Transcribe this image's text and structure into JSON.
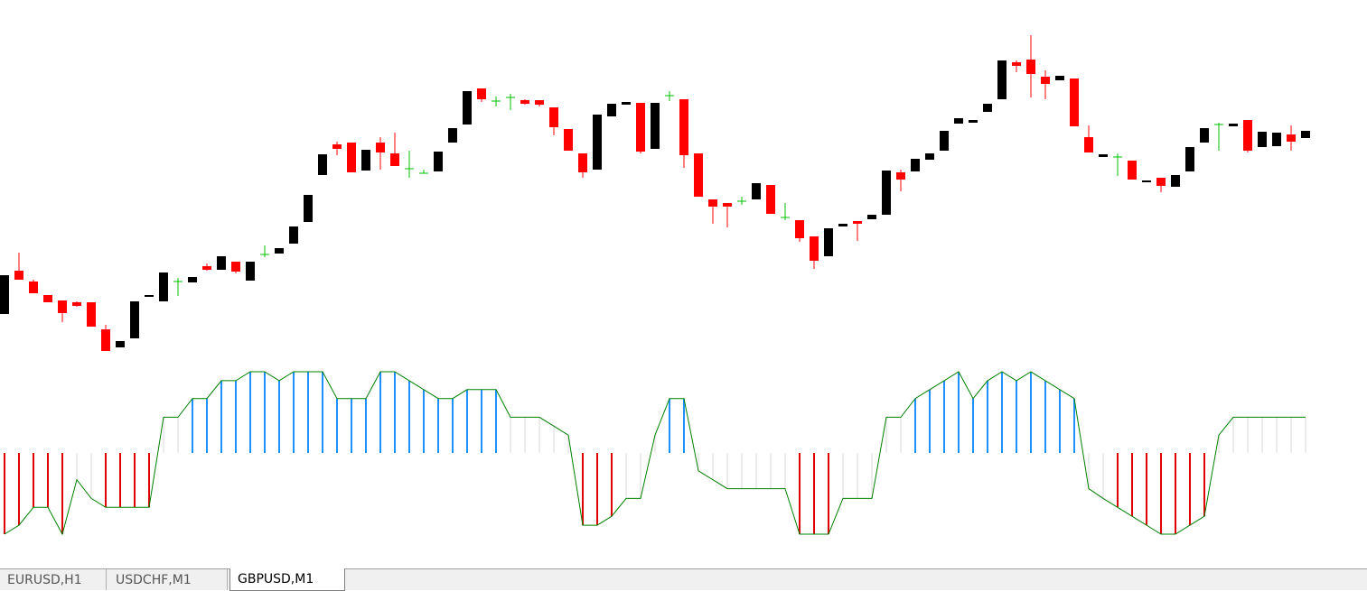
{
  "chart_data": [
    {
      "type": "candlestick",
      "ylim": [
        0,
        400
      ],
      "up_color": "#000000",
      "down_color": "#ff0000",
      "doji_color": "#00c000",
      "open": [
        52,
        100,
        88,
        73,
        67,
        65,
        65,
        35,
        15,
        25,
        71,
        66,
        88,
        87,
        105,
        101,
        110,
        89,
        118,
        119,
        130,
        154,
        206,
        240,
        242,
        211,
        242,
        230,
        213,
        208,
        210,
        242,
        262,
        302,
        288,
        292,
        289,
        289,
        281,
        257,
        230,
        212,
        271,
        284,
        286,
        235,
        294,
        290,
        230,
        179,
        175,
        177,
        179,
        195,
        159,
        156,
        138,
        116,
        149,
        155,
        157,
        162,
        209,
        210,
        223,
        233,
        263,
        264,
        276,
        290,
        331,
        334,
        315,
        311,
        313,
        248,
        226,
        226,
        222,
        198,
        203,
        193,
        210,
        242,
        262,
        260,
        267,
        237,
        238,
        251,
        247
      ],
      "high": [
        95,
        120,
        90,
        73,
        67,
        66,
        65,
        40,
        22,
        66,
        73,
        98,
        92,
        93,
        108,
        116,
        110,
        110,
        128,
        125,
        149,
        184,
        229,
        243,
        242,
        234,
        248,
        253,
        233,
        212,
        232,
        258,
        299,
        302,
        293,
        296,
        290,
        289,
        281,
        257,
        230,
        273,
        285,
        287,
        286,
        286,
        299,
        290,
        230,
        179,
        175,
        182,
        197,
        195,
        175,
        156,
        138,
        147,
        152,
        155,
        162,
        211,
        212,
        224,
        230,
        255,
        269,
        267,
        285,
        333,
        333,
        361,
        322,
        316,
        313,
        261,
        229,
        230,
        222,
        200,
        203,
        206,
        237,
        258,
        264,
        263,
        267,
        254,
        253,
        261,
        255
      ],
      "low": [
        52,
        90,
        75,
        65,
        43,
        60,
        38,
        11,
        15,
        25,
        71,
        66,
        72,
        87,
        100,
        101,
        97,
        89,
        115,
        119,
        130,
        154,
        206,
        228,
        209,
        211,
        212,
        216,
        203,
        208,
        210,
        242,
        262,
        287,
        282,
        278,
        284,
        282,
        250,
        233,
        203,
        212,
        271,
        284,
        230,
        235,
        288,
        214,
        182,
        152,
        148,
        173,
        179,
        163,
        156,
        132,
        102,
        116,
        149,
        133,
        157,
        162,
        188,
        210,
        223,
        233,
        263,
        264,
        276,
        290,
        320,
        292,
        290,
        311,
        260,
        231,
        226,
        205,
        201,
        198,
        187,
        193,
        210,
        242,
        233,
        260,
        231,
        237,
        238,
        233,
        247
      ],
      "close": [
        95,
        90,
        75,
        65,
        53,
        61,
        38,
        11,
        22,
        66,
        73,
        98,
        88,
        93,
        101,
        116,
        99,
        110,
        118,
        125,
        149,
        184,
        229,
        235,
        209,
        234,
        231,
        216,
        213,
        208,
        232,
        258,
        299,
        290,
        288,
        292,
        285,
        284,
        259,
        233,
        209,
        273,
        285,
        287,
        232,
        286,
        294,
        228,
        182,
        171,
        171,
        177,
        197,
        163,
        159,
        136,
        111,
        147,
        152,
        152,
        162,
        211,
        201,
        224,
        230,
        255,
        269,
        267,
        285,
        333,
        327,
        318,
        307,
        316,
        260,
        231,
        229,
        226,
        201,
        200,
        194,
        206,
        237,
        258,
        262,
        263,
        233,
        254,
        253,
        243,
        255
      ]
    },
    {
      "type": "oscillator",
      "ylim": [
        -100,
        100
      ],
      "levels": [
        -60,
        60
      ],
      "line_color": "#008000",
      "up_color": "#1e90ff",
      "down_color": "#e00000",
      "neutral_color": "#ececec",
      "values": [
        -100,
        -89,
        -67,
        -67,
        -100,
        -33,
        -56,
        -67,
        -67,
        -67,
        -67,
        44,
        44,
        67,
        67,
        89,
        89,
        100,
        100,
        89,
        100,
        100,
        100,
        67,
        67,
        67,
        100,
        100,
        89,
        78,
        67,
        67,
        78,
        78,
        78,
        44,
        44,
        44,
        33,
        22,
        -89,
        -89,
        -78,
        -56,
        -56,
        22,
        67,
        67,
        -22,
        -33,
        -44,
        -44,
        -44,
        -44,
        -44,
        -100,
        -100,
        -100,
        -56,
        -56,
        -56,
        44,
        44,
        67,
        78,
        89,
        100,
        67,
        89,
        100,
        89,
        100,
        89,
        78,
        67,
        -44,
        -56,
        -67,
        -78,
        -89,
        -100,
        -100,
        -89,
        -78,
        22,
        44,
        44,
        44,
        44,
        44,
        44
      ]
    }
  ],
  "tabs": [
    "EURUSD,H1",
    "USDCHF,M1",
    "GBPUSD,M1"
  ],
  "active_tab": 2
}
